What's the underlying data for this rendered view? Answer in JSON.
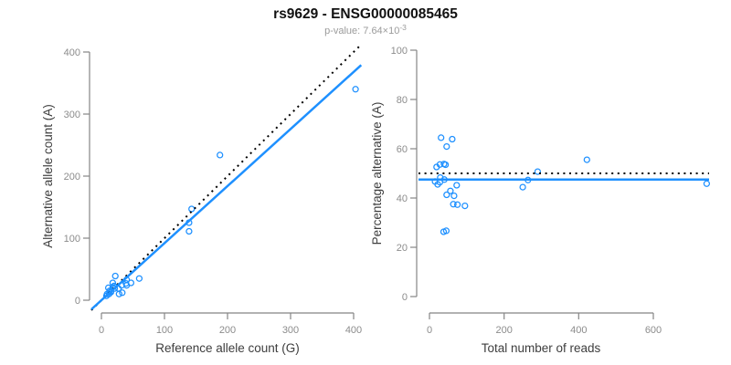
{
  "figure": {
    "title": "rs9629 - ENSG00000085465",
    "subtitle_prefix": "p-value: 7.64×10",
    "subtitle_exponent": "-3"
  },
  "colors": {
    "point_blue": "#1E90FF",
    "fit_blue": "#1E90FF",
    "reference_black": "#000000",
    "axis_gray": "#858585",
    "tick_label_gray": "#8c8c8c",
    "axis_title_gray": "#3d3d3d",
    "title_black": "#111111",
    "subtitle_gray": "#9b9b9b"
  },
  "chart_data": [
    {
      "type": "scatter",
      "name": "allele-counts-scatter",
      "xlabel": "Reference allele count (G)",
      "ylabel": "Alternative allele count (A)",
      "xlim": [
        0,
        400
      ],
      "ylim": [
        0,
        400
      ],
      "xticks": [
        0,
        100,
        200,
        300,
        400
      ],
      "yticks": [
        0,
        100,
        200,
        300,
        400
      ],
      "grid": false,
      "legend": null,
      "points": [
        [
          11,
          20
        ],
        [
          22,
          39
        ],
        [
          18,
          28
        ],
        [
          9,
          10
        ],
        [
          13,
          15
        ],
        [
          18,
          21
        ],
        [
          20,
          23
        ],
        [
          15,
          14
        ],
        [
          15,
          13
        ],
        [
          21,
          19
        ],
        [
          8,
          7
        ],
        [
          12,
          10
        ],
        [
          40,
          33
        ],
        [
          32,
          24
        ],
        [
          27,
          19
        ],
        [
          39,
          27
        ],
        [
          40,
          24
        ],
        [
          47,
          28
        ],
        [
          60,
          35
        ],
        [
          28,
          10
        ],
        [
          33,
          12
        ],
        [
          139,
          111
        ],
        [
          139,
          125
        ],
        [
          143,
          147
        ],
        [
          188,
          234
        ],
        [
          403,
          340
        ]
      ],
      "lines": [
        {
          "name": "identity",
          "style": "dotted",
          "color": "#000000",
          "slope": 1,
          "intercept": 0
        },
        {
          "name": "fit",
          "style": "solid",
          "color": "#1E90FF",
          "slope": 0.92,
          "intercept": 0
        }
      ]
    },
    {
      "type": "scatter",
      "name": "percentage-vs-coverage-scatter",
      "xlabel": "Total number of reads",
      "ylabel": "Percentage alternative (A)",
      "xlim": [
        0,
        743
      ],
      "ylim": [
        0,
        100
      ],
      "xticks": [
        0,
        200,
        400,
        600
      ],
      "yticks": [
        0,
        20,
        40,
        60,
        80,
        100
      ],
      "grid": false,
      "legend": null,
      "points": [
        [
          31,
          64.5
        ],
        [
          61,
          63.9
        ],
        [
          46,
          60.9
        ],
        [
          19,
          52.6
        ],
        [
          28,
          53.6
        ],
        [
          39,
          53.8
        ],
        [
          43,
          53.5
        ],
        [
          29,
          48.3
        ],
        [
          28,
          46.4
        ],
        [
          40,
          47.5
        ],
        [
          15,
          46.7
        ],
        [
          22,
          45.5
        ],
        [
          73,
          45.2
        ],
        [
          56,
          42.9
        ],
        [
          46,
          41.3
        ],
        [
          66,
          40.9
        ],
        [
          64,
          37.5
        ],
        [
          75,
          37.3
        ],
        [
          95,
          36.8
        ],
        [
          38,
          26.3
        ],
        [
          45,
          26.7
        ],
        [
          250,
          44.4
        ],
        [
          264,
          47.3
        ],
        [
          290,
          50.7
        ],
        [
          422,
          55.5
        ],
        [
          743,
          45.8
        ]
      ],
      "lines": [
        {
          "name": "expected",
          "style": "dotted",
          "color": "#000000",
          "y": 50
        },
        {
          "name": "fit",
          "style": "solid",
          "color": "#1E90FF",
          "y": 47.5
        }
      ]
    }
  ]
}
